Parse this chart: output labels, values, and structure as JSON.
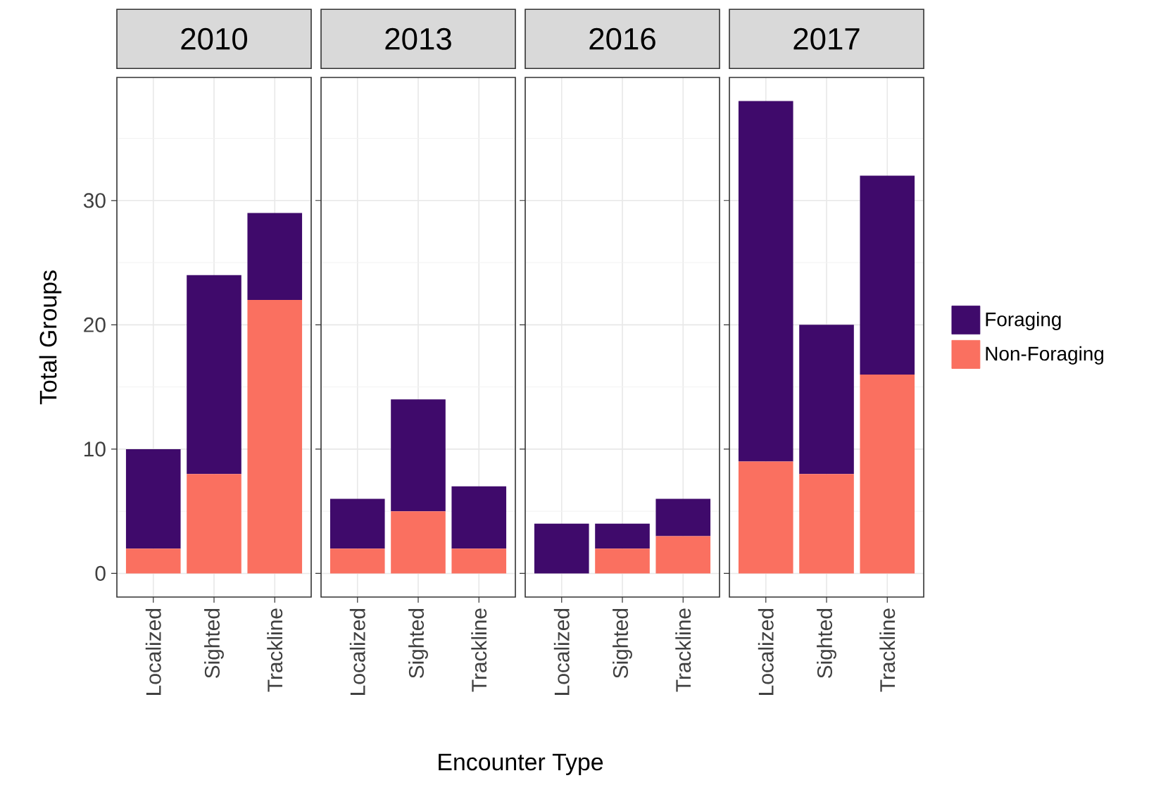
{
  "chart_data": [
    {
      "type": "bar",
      "title": "2010",
      "categories": [
        "Localized",
        "Sighted",
        "Trackline"
      ],
      "stacked": true,
      "ylabel": "Total Groups",
      "xlabel": "Encounter Type",
      "ylim": [
        -1.9,
        39.9
      ],
      "yticks": [
        0,
        10,
        20,
        30
      ],
      "grid": true,
      "series": [
        {
          "color": "#fa7060",
          "values": [
            2,
            8,
            22
          ]
        },
        {
          "color": "#3f0a6b",
          "values": [
            8,
            16,
            7
          ]
        }
      ]
    },
    {
      "type": "bar",
      "title": "2013",
      "categories": [
        "Localized",
        "Sighted",
        "Trackline"
      ],
      "stacked": true,
      "ylim": [
        -1.9,
        39.9
      ],
      "yticks": [
        0,
        10,
        20,
        30
      ],
      "grid": true,
      "tick_labels": "x",
      "series": [
        {
          "color": "#fa7060",
          "values": [
            2,
            5,
            2
          ]
        },
        {
          "color": "#3f0a6b",
          "values": [
            4,
            9,
            5
          ]
        }
      ]
    },
    {
      "type": "bar",
      "title": "2016",
      "categories": [
        "Localized",
        "Sighted",
        "Trackline"
      ],
      "stacked": true,
      "ylim": [
        -1.9,
        39.9
      ],
      "yticks": [
        0,
        10,
        20,
        30
      ],
      "grid": true,
      "tick_labels": "x",
      "series": [
        {
          "color": "#fa7060",
          "values": [
            0,
            2,
            3
          ]
        },
        {
          "color": "#3f0a6b",
          "values": [
            4,
            2,
            3
          ]
        }
      ]
    },
    {
      "type": "bar",
      "title": "2017",
      "categories": [
        "Localized",
        "Sighted",
        "Trackline"
      ],
      "stacked": true,
      "ylim": [
        -1.9,
        39.9
      ],
      "yticks": [
        0,
        10,
        20,
        30
      ],
      "grid": true,
      "tick_labels": "x",
      "legend": "right",
      "series": [
        {
          "name": "Non-Foraging",
          "color": "#fa7060",
          "values": [
            9,
            8,
            16
          ]
        },
        {
          "name": "Foraging",
          "color": "#3f0a6b",
          "values": [
            29,
            12,
            16
          ]
        }
      ]
    }
  ]
}
